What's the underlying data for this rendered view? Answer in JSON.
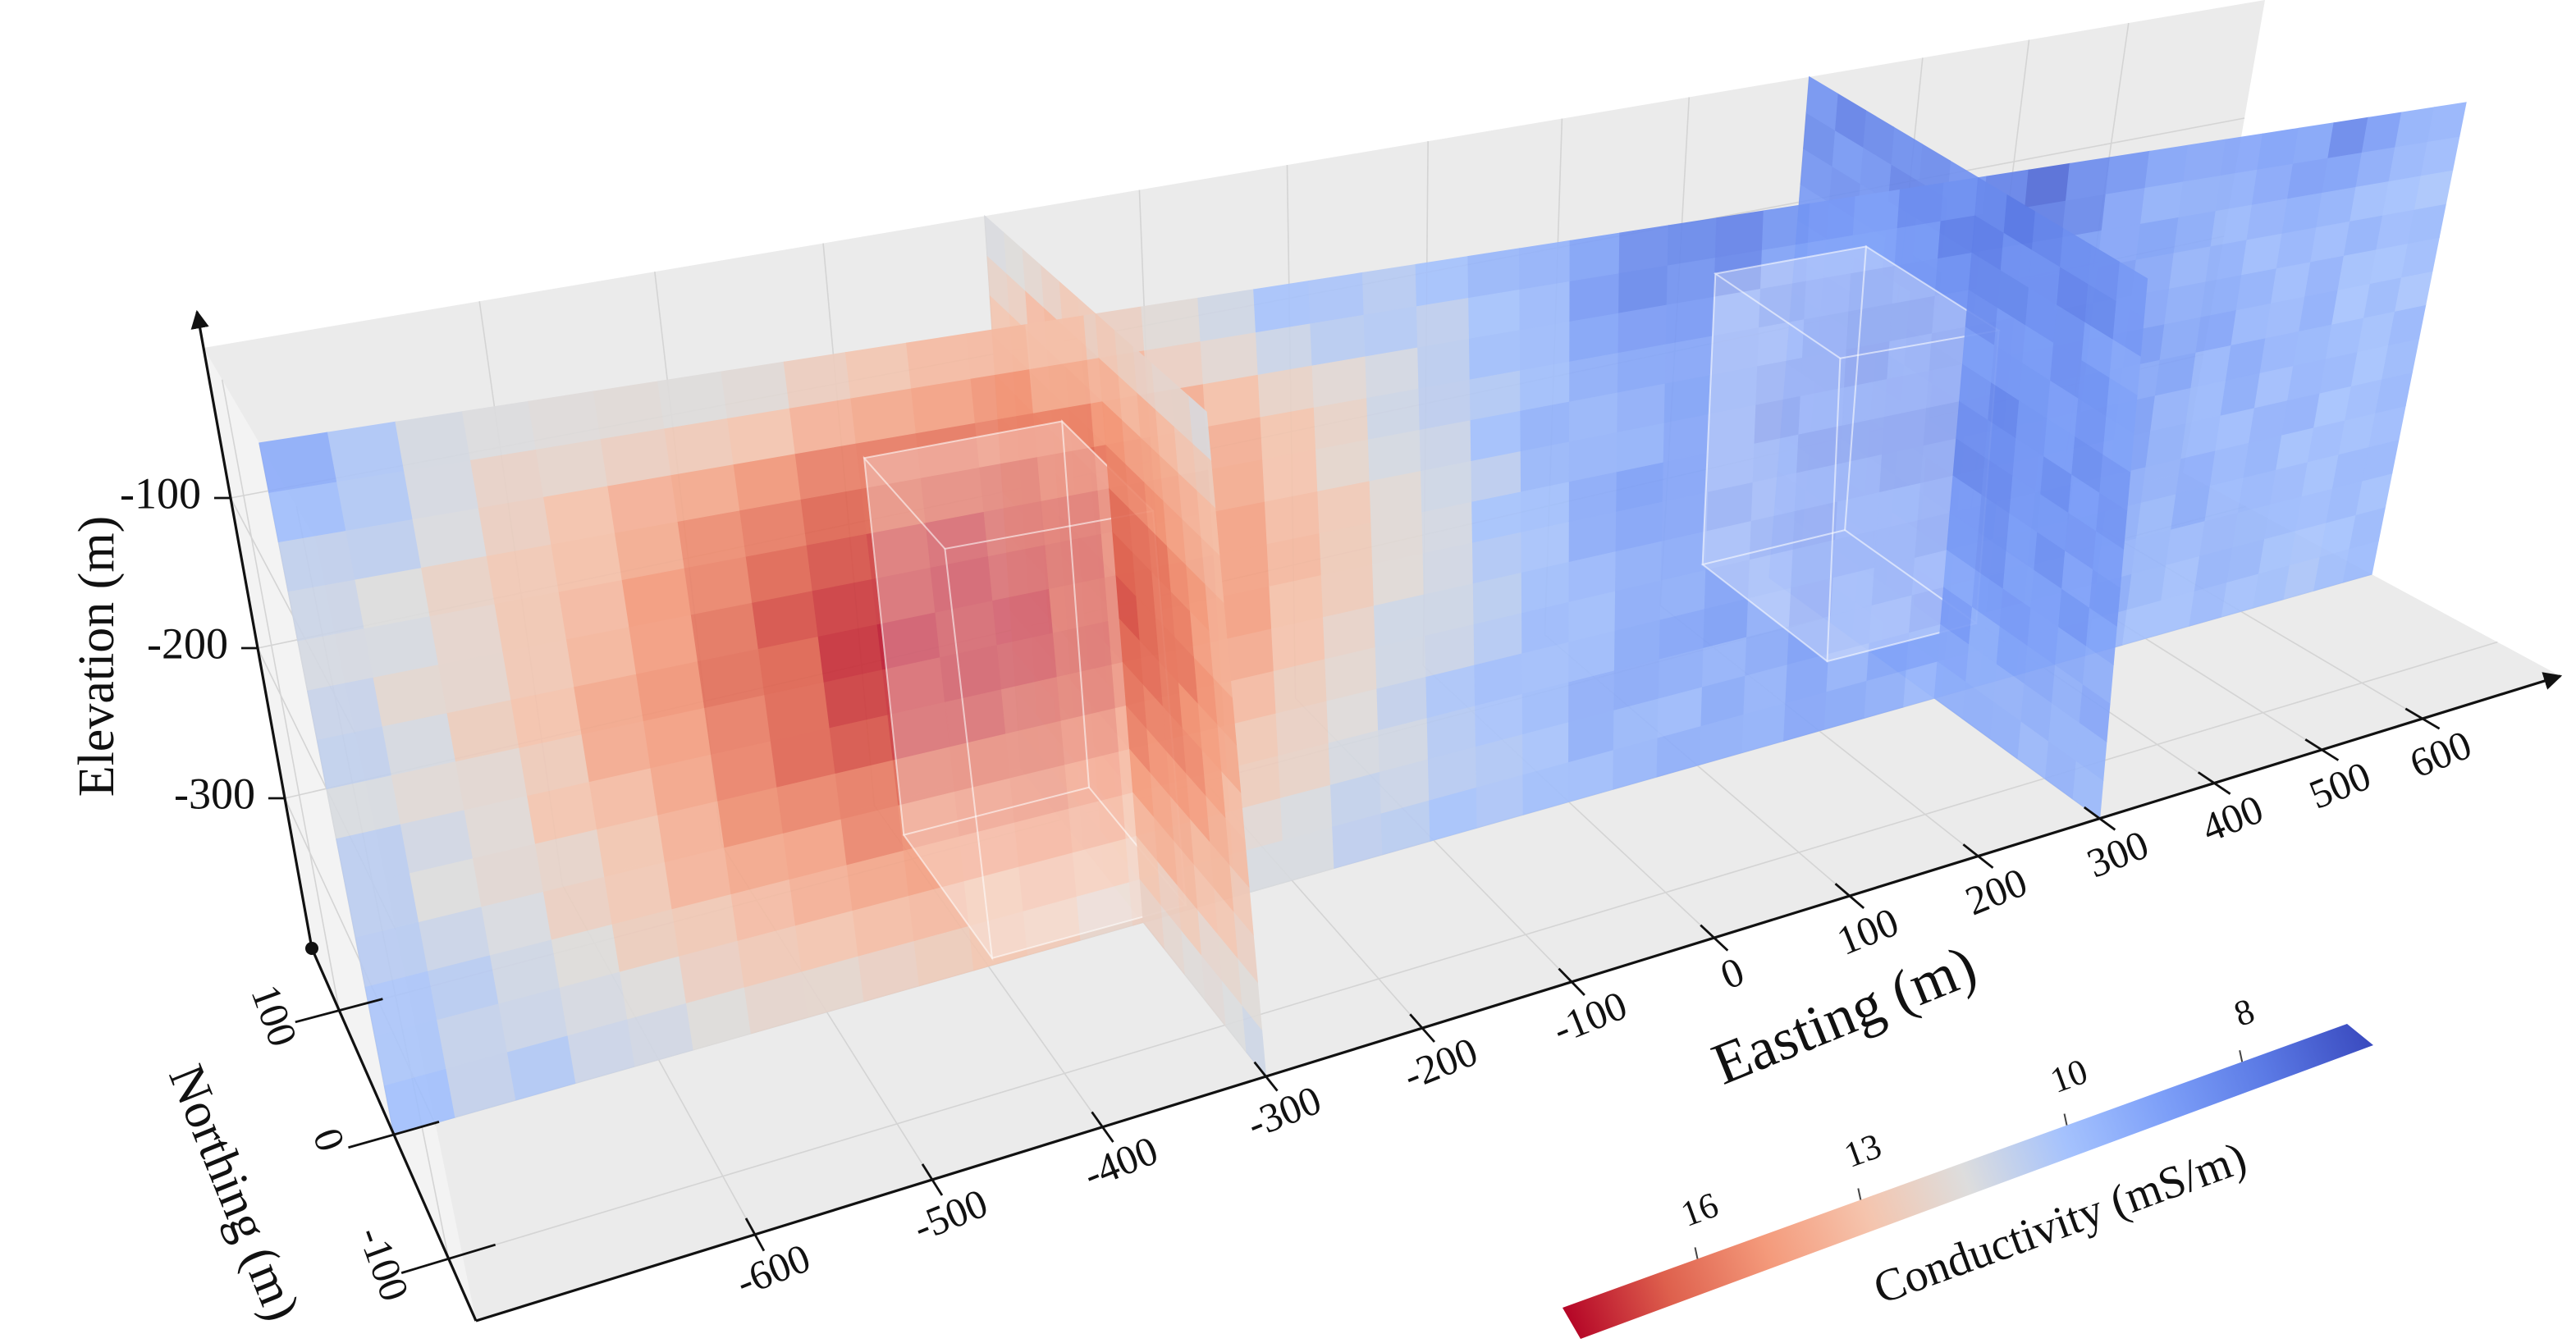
{
  "chart_data": {
    "type": "slice3d",
    "x_label": "Easting (m)",
    "y_label": "Northing (m)",
    "z_label": "Elevation (m)",
    "xlim": [
      -750,
      750
    ],
    "ylim": [
      -150,
      150
    ],
    "zlim": [
      -400,
      0
    ],
    "xticks": [
      -600,
      -500,
      -400,
      -300,
      -200,
      -100,
      0,
      100,
      200,
      300,
      400,
      500,
      600
    ],
    "yticks": [
      -100,
      0,
      100
    ],
    "zticks": [
      -300,
      -200,
      -100
    ],
    "slices": [
      {
        "normal": "y",
        "at": 0
      },
      {
        "normal": "x",
        "at": -300
      },
      {
        "normal": "x",
        "at": 300
      }
    ],
    "colorbar": {
      "label": "Conductivity (mS/m)",
      "lim": [
        19,
        7
      ],
      "ticks": [
        16,
        13,
        10,
        8
      ],
      "log_scale": true,
      "colormap": "coolwarm"
    },
    "grid": true
  }
}
